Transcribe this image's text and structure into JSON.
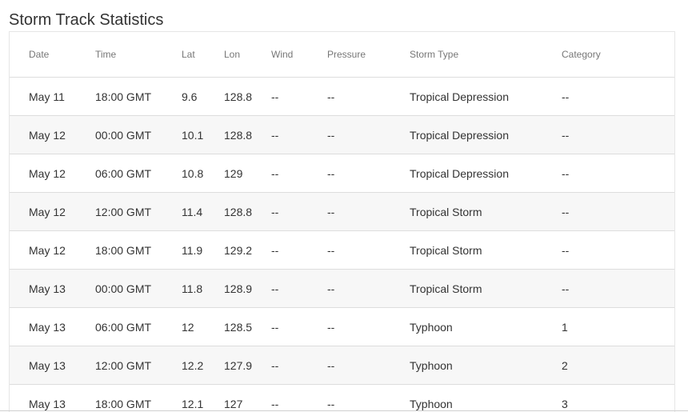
{
  "page": {
    "title": "Storm Track Statistics"
  },
  "table": {
    "columns": [
      "Date",
      "Time",
      "Lat",
      "Lon",
      "Wind",
      "Pressure",
      "Storm Type",
      "Category"
    ],
    "rows": [
      [
        "May 11",
        "18:00 GMT",
        "9.6",
        "128.8",
        "--",
        "--",
        "Tropical Depression",
        "--"
      ],
      [
        "May 12",
        "00:00 GMT",
        "10.1",
        "128.8",
        "--",
        "--",
        "Tropical Depression",
        "--"
      ],
      [
        "May 12",
        "06:00 GMT",
        "10.8",
        "129",
        "--",
        "--",
        "Tropical Depression",
        "--"
      ],
      [
        "May 12",
        "12:00 GMT",
        "11.4",
        "128.8",
        "--",
        "--",
        "Tropical Storm",
        "--"
      ],
      [
        "May 12",
        "18:00 GMT",
        "11.9",
        "129.2",
        "--",
        "--",
        "Tropical Storm",
        "--"
      ],
      [
        "May 13",
        "00:00 GMT",
        "11.8",
        "128.9",
        "--",
        "--",
        "Tropical Storm",
        "--"
      ],
      [
        "May 13",
        "06:00 GMT",
        "12",
        "128.5",
        "--",
        "--",
        "Typhoon",
        "1"
      ],
      [
        "May 13",
        "12:00 GMT",
        "12.2",
        "127.9",
        "--",
        "--",
        "Typhoon",
        "2"
      ],
      [
        "May 13",
        "18:00 GMT",
        "12.1",
        "127",
        "--",
        "--",
        "Typhoon",
        "3"
      ]
    ]
  }
}
